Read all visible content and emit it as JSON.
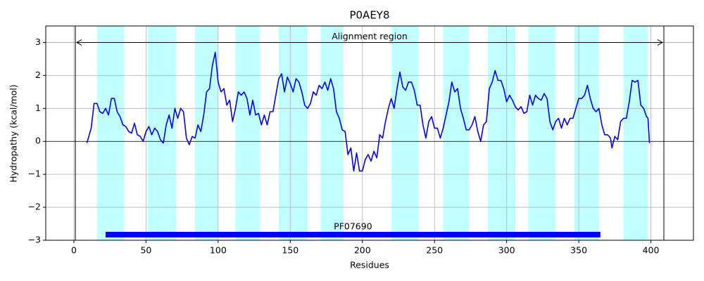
{
  "chart_data": {
    "type": "line",
    "title": "P0AEY8",
    "x_label": "Residues",
    "y_label": "Hydropathy (kcal/mol)",
    "x": [
      9,
      12,
      14,
      16,
      18,
      20,
      22,
      24,
      26,
      28,
      30,
      32,
      34,
      36,
      38,
      40,
      42,
      44,
      46,
      48,
      50,
      52,
      54,
      56,
      58,
      60,
      62,
      64,
      66,
      68,
      70,
      72,
      74,
      76,
      78,
      80,
      82,
      84,
      86,
      88,
      90,
      92,
      94,
      96,
      98,
      100,
      102,
      104,
      106,
      108,
      110,
      112,
      114,
      116,
      118,
      120,
      122,
      124,
      126,
      128,
      130,
      132,
      134,
      136,
      138,
      140,
      142,
      144,
      146,
      148,
      150,
      152,
      154,
      156,
      158,
      160,
      162,
      164,
      166,
      168,
      170,
      172,
      174,
      176,
      178,
      180,
      182,
      184,
      186,
      188,
      190,
      192,
      194,
      196,
      198,
      200,
      202,
      204,
      206,
      208,
      210,
      212,
      214,
      216,
      218,
      220,
      222,
      224,
      226,
      228,
      230,
      232,
      234,
      236,
      238,
      240,
      242,
      244,
      246,
      248,
      250,
      252,
      254,
      256,
      258,
      260,
      262,
      264,
      266,
      268,
      270,
      272,
      274,
      276,
      278,
      280,
      282,
      284,
      286,
      288,
      290,
      292,
      294,
      296,
      298,
      300,
      302,
      304,
      306,
      308,
      310,
      312,
      314,
      316,
      318,
      320,
      322,
      324,
      326,
      328,
      330,
      332,
      334,
      336,
      338,
      340,
      342,
      344,
      346,
      348,
      350,
      352,
      354,
      356,
      358,
      360,
      362,
      364,
      366,
      368,
      370,
      372,
      373,
      375,
      377,
      379,
      381,
      383,
      385,
      387,
      389,
      391,
      393,
      395,
      397,
      398,
      399
    ],
    "values": [
      -0.05,
      0.4,
      1.15,
      1.15,
      0.9,
      0.85,
      1.0,
      0.8,
      1.3,
      1.3,
      0.9,
      0.75,
      0.5,
      0.45,
      0.3,
      0.25,
      0.55,
      0.2,
      0.15,
      0.0,
      0.3,
      0.45,
      0.2,
      0.4,
      0.3,
      0.05,
      -0.05,
      0.5,
      0.8,
      0.4,
      1.0,
      0.7,
      1.0,
      0.9,
      0.1,
      -0.1,
      0.15,
      0.1,
      0.5,
      0.3,
      0.8,
      1.5,
      1.6,
      2.3,
      2.7,
      1.8,
      1.5,
      1.6,
      1.1,
      1.25,
      0.6,
      1.0,
      1.5,
      1.4,
      1.5,
      1.3,
      0.8,
      1.25,
      0.8,
      0.85,
      0.5,
      0.8,
      0.5,
      0.9,
      0.9,
      1.4,
      1.9,
      2.05,
      1.5,
      1.95,
      1.75,
      1.5,
      1.9,
      1.8,
      1.5,
      1.1,
      1.0,
      1.15,
      1.5,
      1.4,
      1.7,
      1.6,
      1.8,
      1.55,
      1.9,
      1.6,
      0.9,
      0.7,
      0.35,
      0.3,
      -0.4,
      -0.2,
      -0.9,
      -0.35,
      -0.9,
      -0.9,
      -0.55,
      -0.4,
      -0.6,
      -0.3,
      -0.5,
      0.2,
      0.1,
      0.6,
      1.0,
      1.3,
      1.0,
      1.6,
      2.1,
      1.65,
      1.55,
      1.8,
      1.8,
      1.55,
      1.1,
      1.1,
      0.5,
      0.1,
      0.6,
      0.75,
      0.4,
      0.4,
      0.1,
      0.4,
      0.8,
      1.2,
      1.8,
      1.5,
      1.6,
      1.0,
      0.7,
      0.35,
      0.35,
      0.5,
      0.75,
      0.3,
      0.0,
      0.5,
      0.6,
      1.6,
      1.8,
      2.15,
      1.85,
      1.85,
      1.6,
      1.2,
      1.4,
      1.25,
      1.05,
      0.95,
      1.05,
      0.85,
      0.9,
      1.4,
      1.1,
      1.4,
      1.3,
      1.25,
      1.45,
      1.3,
      0.6,
      0.35,
      0.6,
      0.7,
      0.4,
      0.7,
      0.5,
      0.7,
      0.7,
      1.0,
      1.3,
      1.3,
      1.4,
      1.7,
      1.3,
      1.0,
      0.9,
      1.0,
      0.5,
      0.2,
      0.2,
      0.1,
      -0.2,
      0.15,
      0.05,
      0.6,
      0.7,
      0.7,
      1.2,
      1.85,
      1.8,
      1.85,
      1.1,
      1.0,
      0.75,
      0.7,
      -0.05
    ],
    "color": "#0000ff",
    "regions": [
      [
        16,
        35
      ],
      [
        51,
        71
      ],
      [
        84,
        100
      ],
      [
        112,
        129
      ],
      [
        142,
        162
      ],
      [
        171,
        187
      ],
      [
        220,
        239
      ],
      [
        256,
        274
      ],
      [
        287,
        306
      ],
      [
        315,
        334
      ],
      [
        347,
        364
      ],
      [
        381,
        398
      ]
    ],
    "region_color": "#bfffff",
    "alignment": {
      "label": "Alignment region",
      "start": 1,
      "end": 409,
      "y": 3
    },
    "domain": {
      "label": "PF07690",
      "start": 22,
      "end": 365,
      "y": -2.83,
      "color": "#0000ff"
    },
    "xlim": [
      -19.5,
      429.5
    ],
    "ylim": [
      -3,
      3.5
    ],
    "xticks": [
      0,
      50,
      100,
      150,
      200,
      250,
      300,
      350,
      400
    ],
    "yticks": [
      {
        "value": -3,
        "label": "−3"
      },
      {
        "value": -2,
        "label": "−2"
      },
      {
        "value": -1,
        "label": "−1"
      },
      0,
      1,
      2,
      3
    ],
    "grid": true
  }
}
